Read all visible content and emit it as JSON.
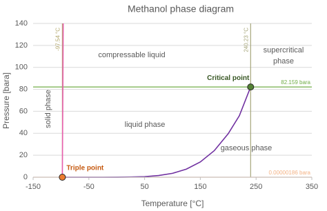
{
  "chart_data": {
    "type": "line",
    "title": "Methanol phase diagram",
    "x_label": "Temperature [°C]",
    "y_label": "Pressure [bara]",
    "xlim": [
      -150,
      350
    ],
    "ylim": [
      0,
      140
    ],
    "xticks": [
      -150,
      -50,
      50,
      150,
      250,
      350
    ],
    "yticks": [
      0,
      20,
      40,
      60,
      80,
      100,
      120,
      140
    ],
    "grid": true,
    "series": [
      {
        "color": "#e75fae",
        "x": [
          -97.54,
          -96.0
        ],
        "values": [
          1.86e-06,
          140
        ]
      },
      {
        "color": "#7030a0",
        "x": [
          -97.54,
          -75,
          -50,
          -25,
          0,
          25,
          50,
          75,
          100,
          125,
          150,
          175,
          200,
          220,
          240.23
        ],
        "values": [
          1.86e-06,
          0.0001,
          0.0008,
          0.0065,
          0.04,
          0.169,
          0.554,
          1.51,
          3.53,
          7.4,
          13.9,
          24.2,
          39.6,
          56,
          82.159
        ]
      }
    ],
    "vertical_lines": [
      {
        "value": -97.54,
        "label": "-97.54 °C",
        "color": "#b4a96e"
      },
      {
        "value": 240.23,
        "label": "240.23 °C",
        "color": "#a5a57a"
      }
    ],
    "horizontal_lines": [
      {
        "value": 82.159,
        "label": "82.159 bara",
        "color": "#70ad47"
      },
      {
        "value": 1.86e-06,
        "label": "0.00000186 bara",
        "color": "#f4b183"
      }
    ],
    "points": [
      {
        "label": "Triple point",
        "x": -97.54,
        "y": 1.86e-06,
        "color": "#ed7d31",
        "label_color": "#c55a11"
      },
      {
        "label": "Critical point",
        "x": 240.23,
        "y": 82.159,
        "color": "#548235",
        "label_color": "#375623"
      }
    ],
    "regions": [
      "compressable liquid",
      "supercritical",
      "phase",
      "solid phase",
      "liquid phase",
      "gaseous phase"
    ]
  }
}
